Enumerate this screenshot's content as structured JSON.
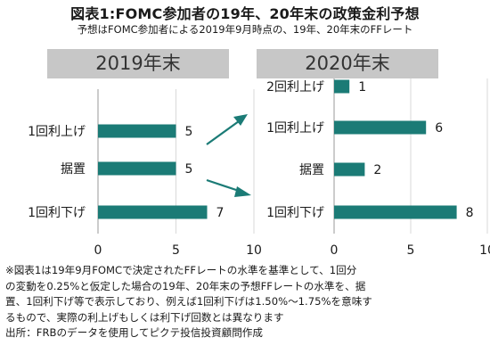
{
  "title": "図表1:FOMC参加者の19年、20年末の政策金利予想",
  "subtitle": "予想はFOMC参加者による2019年9月時点の、19年、20年末のFFレート",
  "chart_data": [
    {
      "type": "bar",
      "orientation": "horizontal",
      "title": "2019年末",
      "categories": [
        "1回利上げ",
        "据置",
        "1回利下げ"
      ],
      "values": [
        5,
        5,
        7
      ],
      "xlim": [
        0,
        10
      ],
      "xticks": [
        "0",
        "5",
        "10"
      ],
      "bar_color": "#1b7b76",
      "grid": true
    },
    {
      "type": "bar",
      "orientation": "horizontal",
      "title": "2020年末",
      "categories": [
        "2回利上げ",
        "1回利上げ",
        "据置",
        "1回利下げ"
      ],
      "values": [
        1,
        6,
        2,
        8
      ],
      "xlim": [
        0,
        10
      ],
      "xticks": [
        "0",
        "5",
        "10"
      ],
      "bar_color": "#1b7b76",
      "grid": true
    }
  ],
  "arrow_color": "#1b7b76",
  "notes": [
    "※図表1は19年9月FOMCで決定されたFFレートの水準を基準として、1回分",
    "の変動を0.25%と仮定した場合の19年、20年末の予想FFレートの水準を、据",
    "置、1回利下げ等で表示しており、例えば1回利下げは1.50%～1.75%を意味す",
    "るもので、実際の利上げもしくは利下げ回数とは異なります",
    "出所：FRBのデータを使用してピクテ投信投資顧問作成"
  ]
}
